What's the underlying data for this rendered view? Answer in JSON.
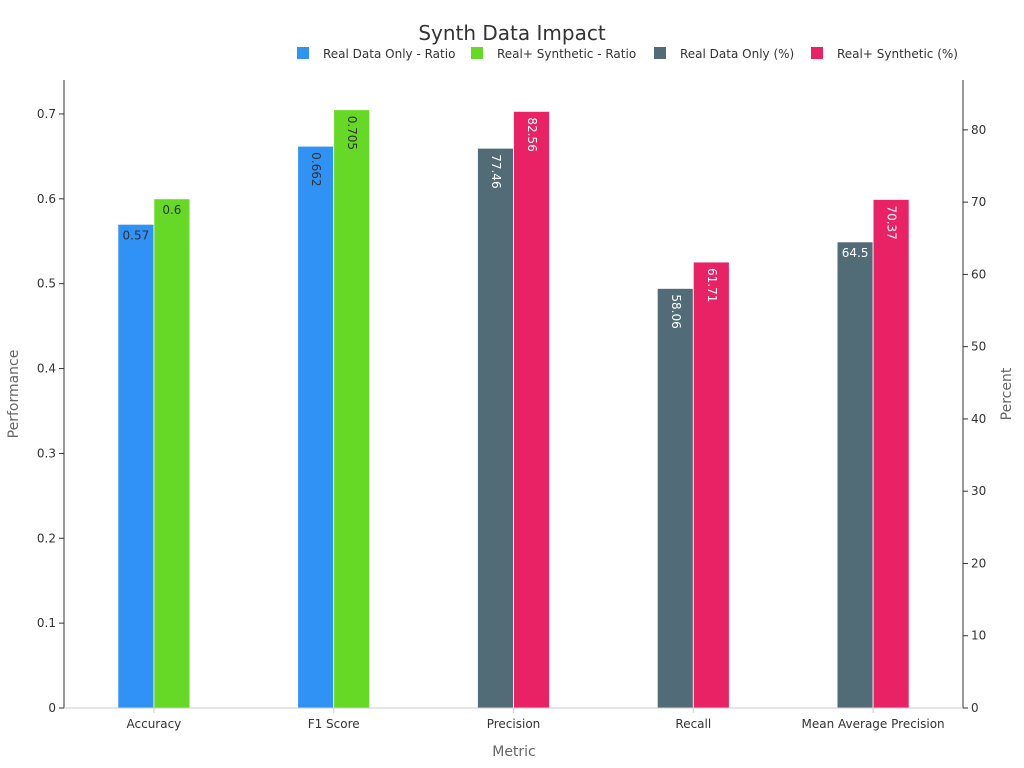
{
  "chart_data": {
    "type": "bar",
    "title": "Synth Data Impact",
    "xlabel": "Metric",
    "ylabel": "Performance",
    "y2label": "Percent",
    "categories": [
      "Accuracy",
      "F1 Score",
      "Precision",
      "Recall",
      "Mean Average Precision"
    ],
    "ylim": [
      0,
      0.74
    ],
    "y2lim": [
      0,
      86.9
    ],
    "yticks": [
      0,
      0.1,
      0.2,
      0.3,
      0.4,
      0.5,
      0.6,
      0.7
    ],
    "ytick_labels": [
      "0",
      "0.1",
      "0.2",
      "0.3",
      "0.4",
      "0.5",
      "0.6",
      "0.7"
    ],
    "y2ticks": [
      0,
      10,
      20,
      30,
      40,
      50,
      60,
      70,
      80
    ],
    "y2tick_labels": [
      "0",
      "10",
      "20",
      "30",
      "40",
      "50",
      "60",
      "70",
      "80"
    ],
    "grid": false,
    "legend_position": "top-right",
    "series": [
      {
        "name": "Real Data Only - Ratio",
        "axis": "left",
        "color": "#3092f4",
        "label_color": "#333333",
        "values": [
          0.57,
          0.662,
          null,
          null,
          null
        ],
        "labels": [
          "0.57",
          "0.662",
          null,
          null,
          null
        ],
        "label_rotated": [
          false,
          true,
          false,
          false,
          false
        ]
      },
      {
        "name": "Real+ Synthetic - Ratio",
        "axis": "left",
        "color": "#66d926",
        "label_color": "#333333",
        "values": [
          0.6,
          0.705,
          null,
          null,
          null
        ],
        "labels": [
          "0.6",
          "0.705",
          null,
          null,
          null
        ],
        "label_rotated": [
          false,
          true,
          false,
          false,
          false
        ]
      },
      {
        "name": "Real Data Only (%)",
        "axis": "right",
        "color": "#516b77",
        "label_color": "#ffffff",
        "values": [
          null,
          null,
          77.46,
          58.06,
          64.5
        ],
        "labels": [
          null,
          null,
          "77.46",
          "58.06",
          "64.5"
        ],
        "label_rotated": [
          false,
          false,
          true,
          true,
          false
        ]
      },
      {
        "name": "Real+ Synthetic (%)",
        "axis": "right",
        "color": "#e82264",
        "label_color": "#ffffff",
        "values": [
          null,
          null,
          82.56,
          61.71,
          70.37
        ],
        "labels": [
          null,
          null,
          "82.56",
          "61.71",
          "70.37"
        ],
        "label_rotated": [
          false,
          false,
          true,
          true,
          true
        ]
      }
    ]
  }
}
